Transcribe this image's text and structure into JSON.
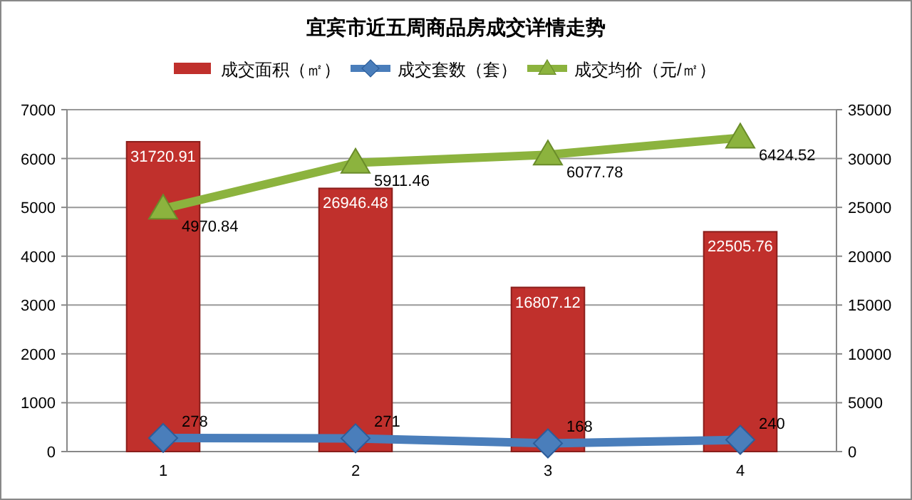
{
  "chart_data": {
    "type": "bar",
    "title": "宜宾市近五周商品房成交详情走势",
    "categories": [
      "1",
      "2",
      "3",
      "4"
    ],
    "series": [
      {
        "name": "成交面积（㎡）",
        "axis": "y2",
        "color": "#c0302c",
        "values": [
          31720.91,
          26946.48,
          16807.12,
          22505.76
        ]
      },
      {
        "name": "成交套数（套）",
        "type": "line",
        "axis": "y",
        "marker": "diamond",
        "color": "#4a7ebb",
        "values": [
          278,
          271,
          168,
          240
        ]
      },
      {
        "name": "成交均价（元/㎡）",
        "type": "line",
        "axis": "y",
        "marker": "triangle",
        "color": "#8cb33e",
        "values": [
          4970.84,
          5911.46,
          6077.78,
          6424.52
        ]
      }
    ],
    "ylim": [
      0,
      7000
    ],
    "yticks": [
      0,
      1000,
      2000,
      3000,
      4000,
      5000,
      6000,
      7000
    ],
    "y2lim": [
      0,
      35000
    ],
    "y2ticks": [
      0,
      5000,
      10000,
      15000,
      20000,
      25000,
      30000,
      35000
    ],
    "grid": "y",
    "legend": "top",
    "data_labels": true
  }
}
